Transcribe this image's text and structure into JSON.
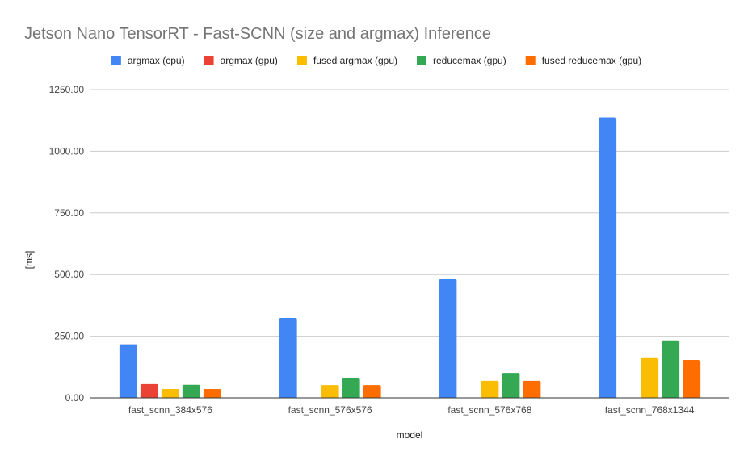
{
  "chart_data": {
    "type": "bar",
    "title": "Jetson Nano TensorRT - Fast-SCNN (size and argmax) Inference",
    "xlabel": "model",
    "ylabel": "[ms]",
    "ylim": [
      0,
      1250
    ],
    "yticks": [
      "0.00",
      "250.00",
      "500.00",
      "750.00",
      "1000.00",
      "1250.00"
    ],
    "grid": true,
    "legend_position": "top",
    "categories": [
      "fast_scnn_384x576",
      "fast_scnn_576x576",
      "fast_scnn_576x768",
      "fast_scnn_768x1344"
    ],
    "series": [
      {
        "name": "argmax (cpu)",
        "color": "#4285f4",
        "values": [
          217,
          324,
          481,
          1137
        ]
      },
      {
        "name": "argmax (gpu)",
        "color": "#ea4335",
        "values": [
          56,
          null,
          null,
          null
        ]
      },
      {
        "name": "fused argmax (gpu)",
        "color": "#fbbc04",
        "values": [
          36,
          52,
          69,
          161
        ]
      },
      {
        "name": "reducemax (gpu)",
        "color": "#34a853",
        "values": [
          53,
          79,
          101,
          233
        ]
      },
      {
        "name": "fused reducemax (gpu)",
        "color": "#ff6d01",
        "values": [
          36,
          52,
          69,
          154
        ]
      }
    ]
  }
}
